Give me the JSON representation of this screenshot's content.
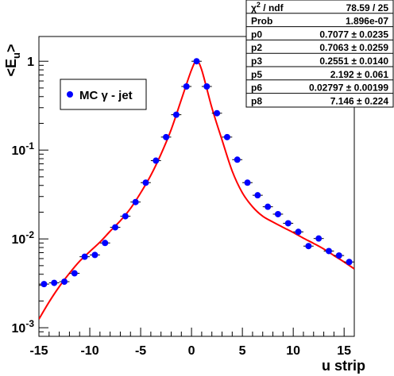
{
  "chart_data": {
    "type": "scatter",
    "title": "",
    "xlabel": "u strip",
    "ylabel": "<E",
    "ylabel_sub": "u",
    "ylabel_close": ">",
    "xlim": [
      -15,
      16
    ],
    "ylim": [
      0.0008,
      1.9
    ],
    "yscale": "log",
    "grid": false,
    "x_ticks": [
      {
        "value": -15,
        "label": "-15"
      },
      {
        "value": -10,
        "label": "-10"
      },
      {
        "value": -5,
        "label": "-5"
      },
      {
        "value": 0,
        "label": "0"
      },
      {
        "value": 5,
        "label": "5"
      },
      {
        "value": 10,
        "label": "10"
      },
      {
        "value": 15,
        "label": "15"
      }
    ],
    "y_ticks": [
      {
        "value": 1,
        "base": "1",
        "exp": ""
      },
      {
        "value": 0.1,
        "base": "10",
        "exp": "-1"
      },
      {
        "value": 0.01,
        "base": "10",
        "exp": "-2"
      },
      {
        "value": 0.001,
        "base": "10",
        "exp": "-3"
      }
    ],
    "legend": {
      "label": "MC γ - jet",
      "placement": "top-left",
      "marker_color": "#0000ff"
    },
    "series": [
      {
        "name": "MC γ - jet",
        "kind": "points",
        "color": "#0000ff",
        "x": [
          -14.5,
          -13.5,
          -12.5,
          -11.5,
          -10.5,
          -9.5,
          -8.5,
          -7.5,
          -6.5,
          -5.5,
          -4.5,
          -3.5,
          -2.5,
          -1.5,
          -0.5,
          0.5,
          1.5,
          2.5,
          3.5,
          4.5,
          5.5,
          6.5,
          7.5,
          8.5,
          9.5,
          10.5,
          11.5,
          12.5,
          13.5,
          14.5,
          15.5
        ],
        "y": [
          0.0031,
          0.0032,
          0.0033,
          0.0041,
          0.0063,
          0.0066,
          0.009,
          0.0135,
          0.018,
          0.026,
          0.043,
          0.076,
          0.14,
          0.25,
          0.52,
          1.0,
          0.52,
          0.26,
          0.14,
          0.078,
          0.043,
          0.031,
          0.023,
          0.019,
          0.015,
          0.012,
          0.0083,
          0.0101,
          0.0073,
          0.0065,
          0.0055
        ]
      },
      {
        "name": "fit",
        "kind": "line",
        "color": "#ff0000",
        "x": [
          -15,
          -14,
          -13,
          -12,
          -11,
          -10,
          -9,
          -8,
          -7,
          -6,
          -5,
          -4,
          -3,
          -2,
          -1,
          0,
          0.5,
          1,
          2,
          3,
          4,
          5,
          6,
          7,
          8,
          9,
          10,
          11,
          12,
          13,
          14,
          15,
          16
        ],
        "y": [
          0.00125,
          0.00195,
          0.0029,
          0.0041,
          0.0056,
          0.0072,
          0.0092,
          0.0122,
          0.016,
          0.022,
          0.033,
          0.052,
          0.09,
          0.17,
          0.37,
          0.8,
          1.0,
          0.8,
          0.3,
          0.13,
          0.058,
          0.033,
          0.023,
          0.018,
          0.0155,
          0.0135,
          0.0118,
          0.0102,
          0.0089,
          0.0077,
          0.0065,
          0.0055,
          0.0046
        ]
      }
    ]
  },
  "stats_box": {
    "rows": [
      {
        "label": "χ",
        "sup": "2",
        "rest": " / ndf",
        "value": "78.59 / 25"
      },
      {
        "label": "Prob",
        "sup": "",
        "rest": "",
        "value": "1.896e-07"
      },
      {
        "label": "p0",
        "sup": "",
        "rest": "",
        "value": "0.7077 ± 0.0235"
      },
      {
        "label": "p2",
        "sup": "",
        "rest": "",
        "value": "0.7063 ± 0.0259"
      },
      {
        "label": "p3",
        "sup": "",
        "rest": "",
        "value": "0.2551 ± 0.0140"
      },
      {
        "label": "p5",
        "sup": "",
        "rest": "",
        "value": "2.192 ± 0.061"
      },
      {
        "label": "p6",
        "sup": "",
        "rest": "",
        "value": "0.02797 ± 0.00199"
      },
      {
        "label": "p8",
        "sup": "",
        "rest": "",
        "value": "7.146 ± 0.224"
      }
    ]
  }
}
